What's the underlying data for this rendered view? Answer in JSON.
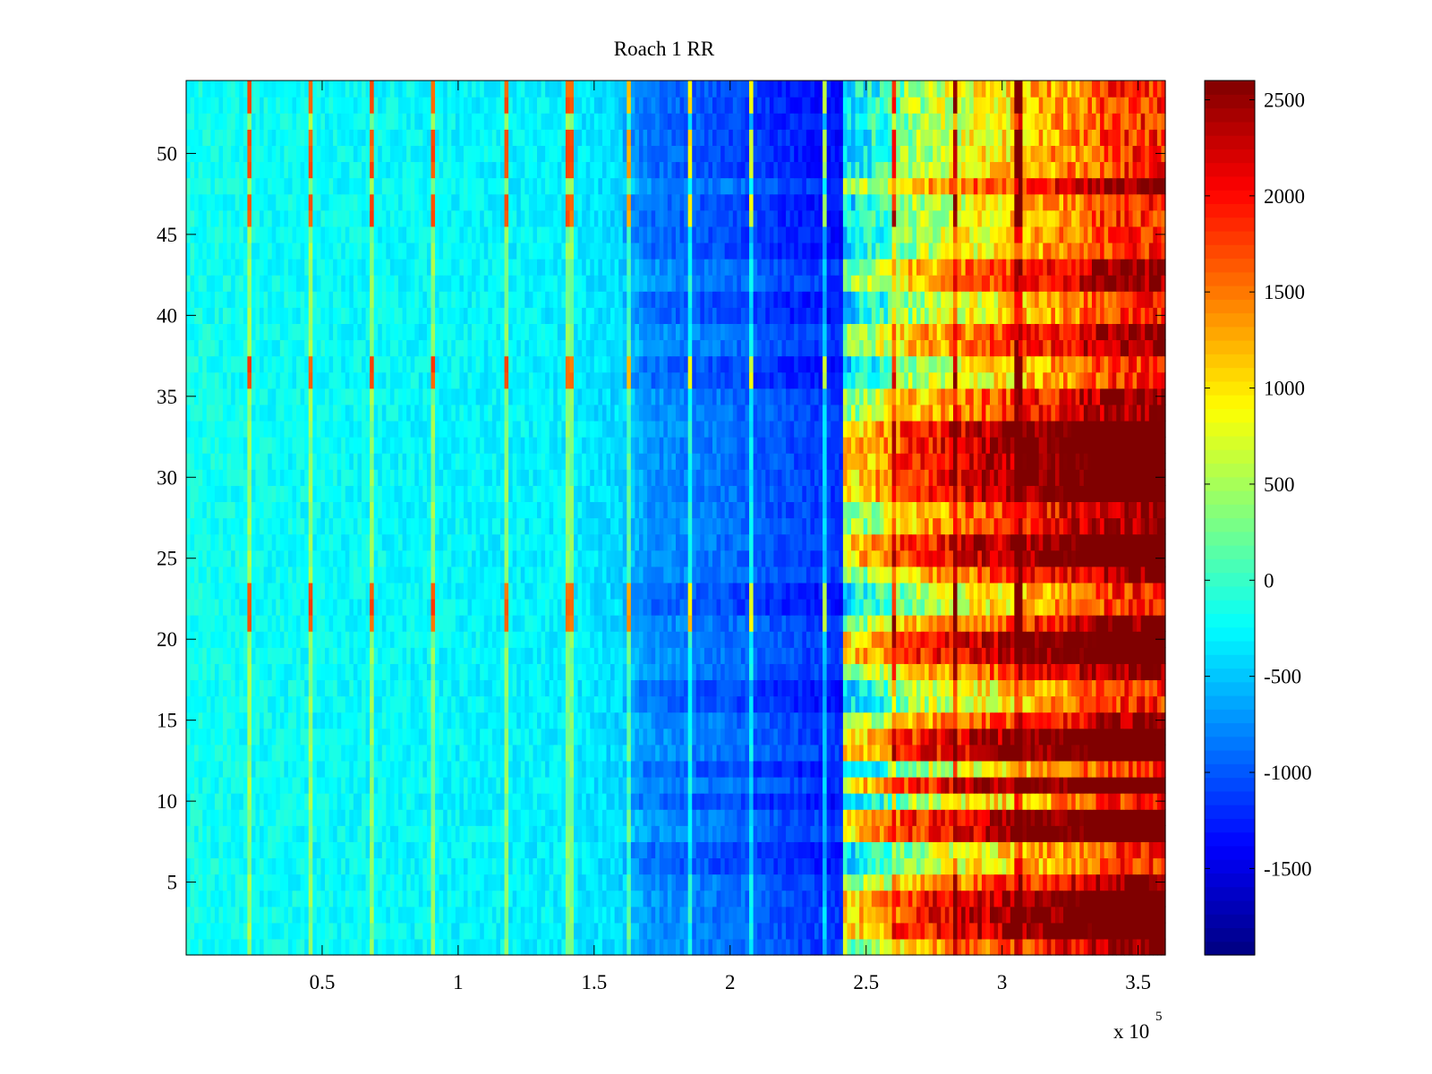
{
  "chart_data": {
    "type": "heatmap",
    "title": "Roach 1 RR",
    "xlabel": "",
    "ylabel": "",
    "x_exponent_label": "x 10",
    "x_exponent_power": "5",
    "xlim": [
      0,
      360000
    ],
    "ylim": [
      0.5,
      54.5
    ],
    "rows": 54,
    "x_ticks": [
      {
        "value": 50000,
        "label": "0.5"
      },
      {
        "value": 100000,
        "label": "1"
      },
      {
        "value": 150000,
        "label": "1.5"
      },
      {
        "value": 200000,
        "label": "2"
      },
      {
        "value": 250000,
        "label": "2.5"
      },
      {
        "value": 300000,
        "label": "3"
      },
      {
        "value": 350000,
        "label": "3.5"
      }
    ],
    "y_ticks": [
      {
        "value": 5,
        "label": "5"
      },
      {
        "value": 10,
        "label": "10"
      },
      {
        "value": 15,
        "label": "15"
      },
      {
        "value": 20,
        "label": "20"
      },
      {
        "value": 25,
        "label": "25"
      },
      {
        "value": 30,
        "label": "30"
      },
      {
        "value": 35,
        "label": "35"
      },
      {
        "value": 40,
        "label": "40"
      },
      {
        "value": 45,
        "label": "45"
      },
      {
        "value": 50,
        "label": "50"
      }
    ],
    "colorbar": {
      "colormap": "jet",
      "clim": [
        -1950,
        2600
      ],
      "ticks": [
        {
          "value": 2500,
          "label": "2500"
        },
        {
          "value": 2000,
          "label": "2000"
        },
        {
          "value": 1500,
          "label": "1500"
        },
        {
          "value": 1000,
          "label": "1000"
        },
        {
          "value": 500,
          "label": "500"
        },
        {
          "value": 0,
          "label": "0"
        },
        {
          "value": -500,
          "label": "-500"
        },
        {
          "value": -1000,
          "label": "-1000"
        },
        {
          "value": -1500,
          "label": "-1500"
        }
      ]
    },
    "column_profile": {
      "x": [
        0,
        20000,
        60000,
        100000,
        140000,
        160000,
        170000,
        190000,
        210000,
        230000,
        241000,
        242000,
        255000,
        265000,
        275000,
        290000,
        310000,
        330000,
        340000,
        360000
      ],
      "value": [
        -150,
        -200,
        -230,
        -260,
        -300,
        -420,
        -700,
        -820,
        -950,
        -1100,
        -1150,
        300,
        600,
        1100,
        1300,
        1550,
        1850,
        2200,
        2500,
        2600
      ]
    },
    "vertical_stripes_x": [
      23000,
      46000,
      68000,
      91000,
      118000,
      141000,
      163000,
      185000,
      208000,
      235000,
      260000,
      283000,
      306000
    ],
    "high_rows": [
      2,
      3,
      4,
      8,
      9,
      11,
      13,
      14,
      19,
      20,
      25,
      26,
      29,
      30,
      31,
      32,
      33
    ],
    "low_rows": [
      6,
      7,
      10,
      12,
      16,
      17,
      22,
      23,
      36,
      37,
      40,
      41,
      44,
      45,
      46,
      47,
      49,
      50,
      51,
      52,
      53,
      54
    ],
    "stripe_rows": [
      21,
      22,
      23,
      36,
      37,
      46,
      47,
      49,
      50,
      51,
      53,
      54
    ]
  }
}
